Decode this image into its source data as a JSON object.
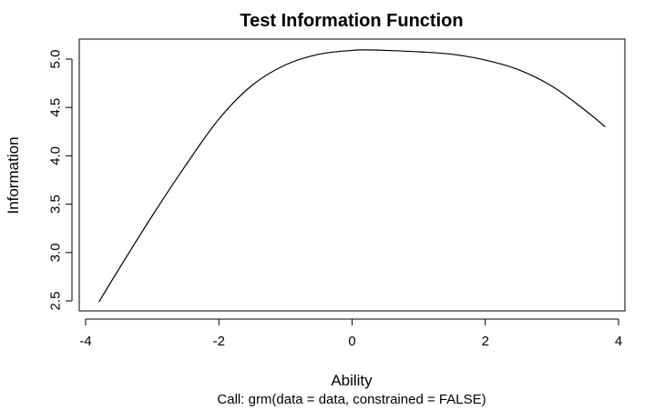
{
  "chart_data": {
    "type": "line",
    "title": "Test Information Function",
    "xlabel": "Ability",
    "ylabel": "Information",
    "subtitle": "Call:  grm(data = data, constrained = FALSE)",
    "xlim": [
      -4,
      4
    ],
    "ylim": [
      2.45,
      5.2
    ],
    "x_ticks": [
      "-4",
      "-2",
      "0",
      "2",
      "4"
    ],
    "y_ticks": [
      "2.5",
      "3.0",
      "3.5",
      "4.0",
      "4.5",
      "5.0"
    ],
    "grid": false,
    "series": [
      {
        "x": [
          -3.8,
          -3.5,
          -3.0,
          -2.5,
          -2.0,
          -1.5,
          -1.0,
          -0.5,
          0.0,
          0.2,
          0.5,
          1.0,
          1.5,
          2.0,
          2.5,
          3.0,
          3.5,
          3.8
        ],
        "y": [
          2.49,
          2.83,
          3.38,
          3.9,
          4.38,
          4.73,
          4.94,
          5.05,
          5.09,
          5.095,
          5.09,
          5.075,
          5.05,
          4.99,
          4.89,
          4.72,
          4.47,
          4.3
        ],
        "color": "#000000"
      }
    ]
  }
}
